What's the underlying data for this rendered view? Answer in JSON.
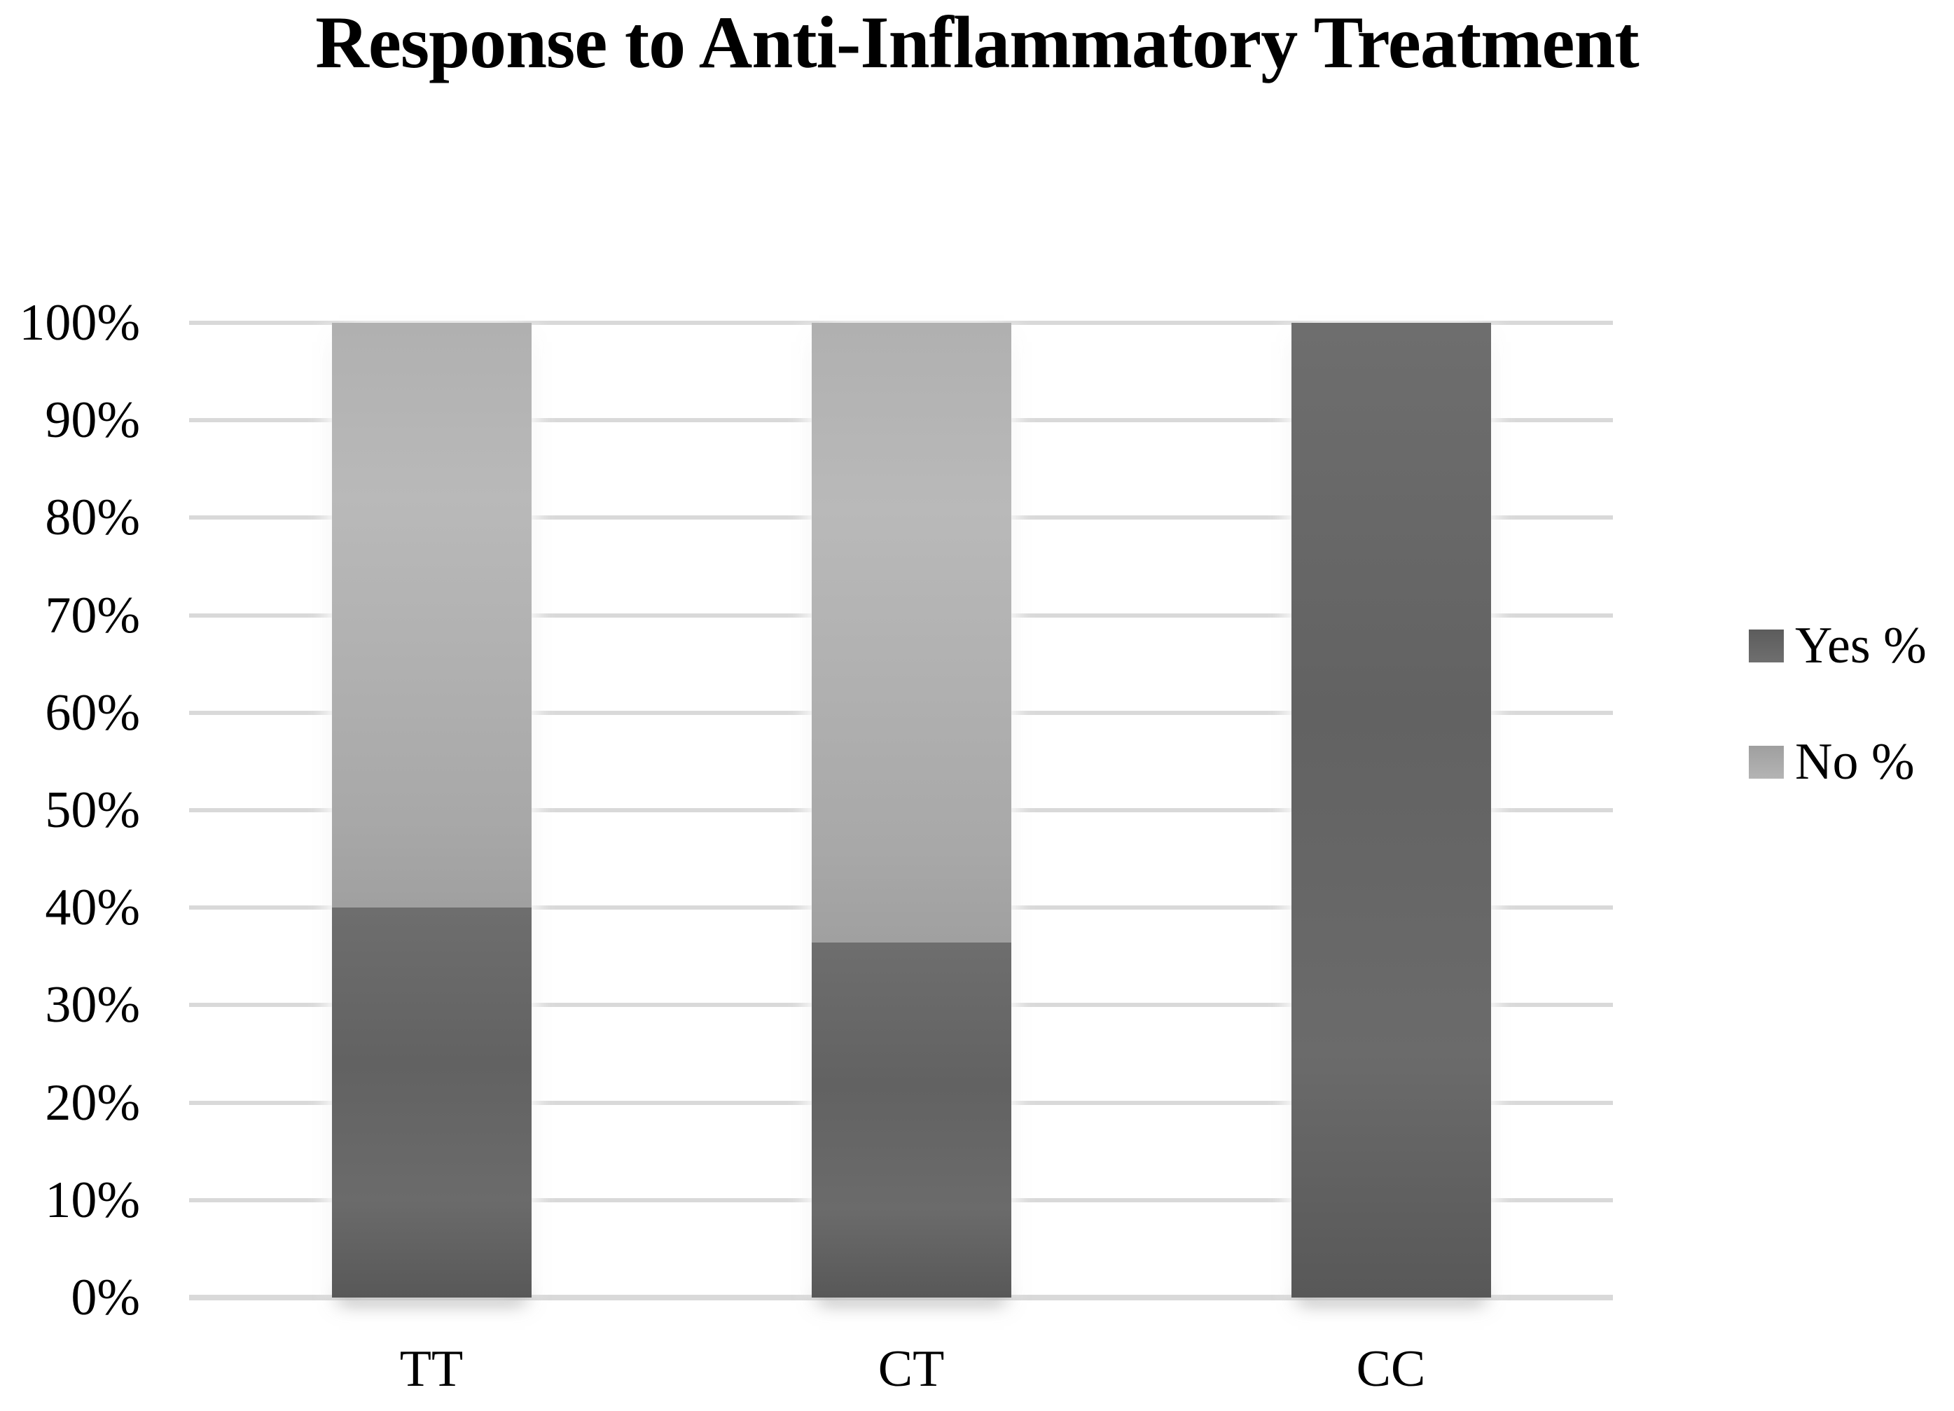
{
  "title": "Response to Anti-Inflammatory Treatment",
  "chart_data": {
    "type": "bar",
    "stacked": true,
    "title": "Response to Anti-Inflammatory Treatment",
    "categories": [
      "TT",
      "CT",
      "CC"
    ],
    "series": [
      {
        "name": "Yes %",
        "color": "#666666",
        "values": [
          40,
          36.4,
          100
        ]
      },
      {
        "name": "No %",
        "color": "#ababab",
        "values": [
          60,
          63.6,
          0
        ]
      }
    ],
    "xlabel": "",
    "ylabel": "",
    "ylim": [
      0,
      100
    ],
    "y_tick_labels": [
      "0%",
      "10%",
      "20%",
      "30%",
      "40%",
      "50%",
      "60%",
      "70%",
      "80%",
      "90%",
      "100%"
    ],
    "grid": "horizontal",
    "gridline_color": "#d9d9d9",
    "legend_position": "right",
    "legend_items": [
      "Yes %",
      "No %"
    ]
  },
  "colors": {
    "yes_series": "#666666",
    "no_series": "#ababab",
    "gridline": "#d9d9d9",
    "text": "#000000",
    "background": "#ffffff"
  }
}
